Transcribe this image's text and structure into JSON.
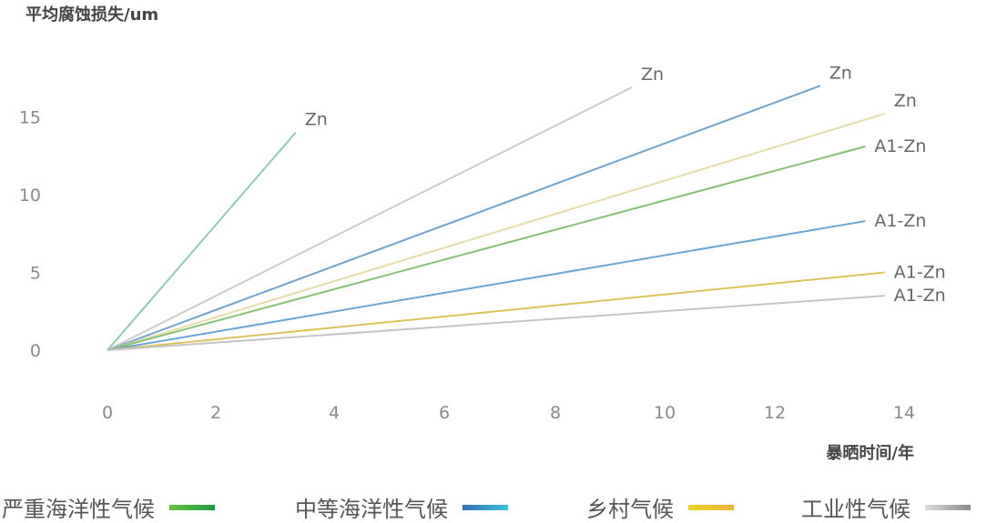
{
  "chart_data": {
    "type": "line",
    "ylabel": "平均腐蚀损失/um",
    "xlabel": "暴晒时间/年",
    "x_ticks": [
      "0",
      "2",
      "4",
      "6",
      "8",
      "10",
      "12",
      "14"
    ],
    "y_ticks": [
      "0",
      "5",
      "10",
      "15"
    ],
    "xlim": [
      0,
      14
    ],
    "ylim": [
      0,
      17
    ],
    "grid": false,
    "legend_position": "bottom",
    "legend": [
      {
        "name": "严重海洋性气候",
        "colors": [
          "#6cc043",
          "#1e9a3a"
        ]
      },
      {
        "name": "中等海洋性气候",
        "colors": [
          "#2f6db5",
          "#3ec3e0"
        ]
      },
      {
        "name": "乡村气候",
        "colors": [
          "#e8d22a",
          "#f0b03a"
        ]
      },
      {
        "name": "工业性气候",
        "colors": [
          "#dcdcdc",
          "#8a8a90"
        ]
      }
    ],
    "series": [
      {
        "label": "Zn",
        "color": "#8fcbb5",
        "x": [
          0,
          3.35
        ],
        "y": [
          0,
          14.0
        ]
      },
      {
        "label": "Zn",
        "color": "#cccccc",
        "x": [
          0,
          9.4
        ],
        "y": [
          0,
          16.9
        ]
      },
      {
        "label": "Zn",
        "color": "#6fa3cc",
        "x": [
          0,
          12.7
        ],
        "y": [
          0,
          17.0
        ]
      },
      {
        "label": "Zn",
        "color": "#e6dca8",
        "x": [
          0,
          13.7
        ],
        "y": [
          0,
          15.2
        ]
      },
      {
        "label": "A1-Zn",
        "color": "#86c074",
        "x": [
          0,
          13.4
        ],
        "y": [
          0,
          13.1
        ]
      },
      {
        "label": "A1-Zn",
        "color": "#6aa6d2",
        "x": [
          0,
          13.4
        ],
        "y": [
          0,
          8.3
        ]
      },
      {
        "label": "A1-Zn",
        "color": "#dcc35a",
        "x": [
          0,
          13.7
        ],
        "y": [
          0,
          5.0
        ]
      },
      {
        "label": "A1-Zn",
        "color": "#c4c4c4",
        "x": [
          0,
          13.7
        ],
        "y": [
          0,
          3.5
        ]
      }
    ]
  }
}
